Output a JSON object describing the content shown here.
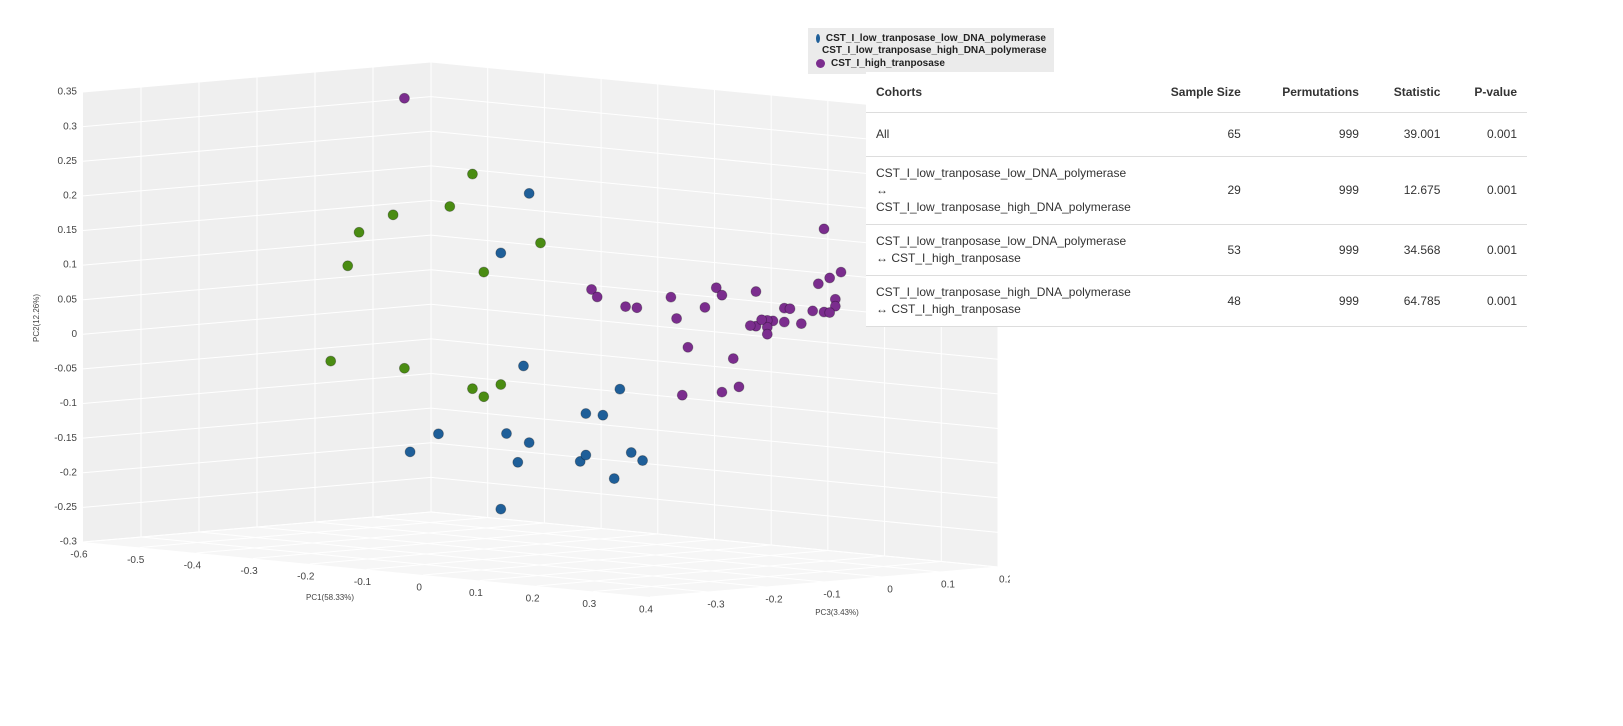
{
  "chart_data": {
    "type": "scatter3d",
    "xlabel": "PC1(58.33%)",
    "ylabel": "PC2(12.26%)",
    "zlabel": "PC3(3.43%)",
    "xlim": [
      -0.6,
      0.4
    ],
    "ylim": [
      -0.3,
      0.35
    ],
    "zlim": [
      -0.4,
      0.2
    ],
    "xticks": [
      -0.6,
      -0.5,
      -0.4,
      -0.3,
      -0.2,
      -0.1,
      0,
      0.1,
      0.2,
      0.3,
      0.4
    ],
    "yticks": [
      -0.3,
      -0.25,
      -0.2,
      -0.15,
      -0.1,
      -0.05,
      0,
      0.05,
      0.1,
      0.15,
      0.2,
      0.25,
      0.3,
      0.35
    ],
    "zticks": [
      -0.3,
      -0.2,
      -0.1,
      0,
      0.1,
      0.2
    ],
    "grid": true,
    "series": [
      {
        "name": "CST_I_low_tranposase_low_DNA_polymerase",
        "color": "#1f5f99",
        "x": [
          -0.12,
          -0.17,
          -0.13,
          0.04,
          -0.02,
          0.01,
          -0.28,
          -0.16,
          -0.12,
          -0.33,
          -0.14,
          -0.03,
          -0.02,
          0.06,
          0.08,
          0.03,
          -0.17
        ],
        "y": [
          0.22,
          0.13,
          -0.03,
          -0.05,
          -0.09,
          -0.09,
          -0.14,
          -0.13,
          -0.14,
          -0.17,
          -0.17,
          -0.16,
          -0.15,
          -0.14,
          -0.15,
          -0.18,
          -0.24
        ],
        "z": [
          -0.1,
          -0.1,
          -0.1,
          -0.1,
          -0.1,
          -0.1,
          -0.1,
          -0.1,
          -0.1,
          -0.1,
          -0.1,
          -0.1,
          -0.1,
          -0.1,
          -0.1,
          -0.1,
          -0.1
        ]
      },
      {
        "name": "CST_I_low_tranposase_high_DNA_polymerase",
        "color": "#4a8c12",
        "x": [
          -0.22,
          -0.36,
          -0.26,
          -0.42,
          -0.1,
          -0.44,
          -0.2,
          -0.47,
          -0.34,
          -0.22,
          -0.17,
          -0.2
        ],
        "y": [
          0.24,
          0.17,
          0.19,
          0.14,
          0.15,
          0.09,
          0.1,
          -0.05,
          -0.05,
          -0.07,
          -0.06,
          -0.08
        ],
        "z": [
          -0.1,
          -0.1,
          -0.1,
          -0.1,
          -0.1,
          -0.1,
          -0.1,
          -0.1,
          -0.1,
          -0.1,
          -0.1,
          -0.1
        ]
      },
      {
        "name": "CST_I_high_tranposase",
        "color": "#7b2d8e",
        "x": [
          -0.34,
          0.4,
          0.43,
          0.41,
          0.39,
          -0.01,
          0,
          0.13,
          0.21,
          0.22,
          0.28,
          0.05,
          0.07,
          0.19,
          0.14,
          0.33,
          0.42,
          0.42,
          0.34,
          0.38,
          0.4,
          0.41,
          0.31,
          0.3,
          0.28,
          0.27,
          0.3,
          0.33,
          0.36,
          0.3,
          0.16,
          0.24,
          0.25,
          0.22,
          0.15,
          0.29
        ],
        "y": [
          0.34,
          0.21,
          0.15,
          0.14,
          0.13,
          0.09,
          0.08,
          0.09,
          0.11,
          0.1,
          0.11,
          0.07,
          0.07,
          0.08,
          0.06,
          0.09,
          0.11,
          0.1,
          0.09,
          0.09,
          0.09,
          0.09,
          0.07,
          0.07,
          0.06,
          0.06,
          0.06,
          0.07,
          0.07,
          0.05,
          0.02,
          0.01,
          -0.03,
          -0.04,
          -0.05,
          0.07
        ],
        "z": [
          -0.1,
          -0.1,
          -0.1,
          -0.1,
          -0.1,
          -0.1,
          -0.1,
          -0.1,
          -0.1,
          -0.1,
          -0.1,
          -0.1,
          -0.1,
          -0.1,
          -0.1,
          -0.1,
          -0.1,
          -0.1,
          -0.1,
          -0.1,
          -0.1,
          -0.1,
          -0.1,
          -0.1,
          -0.1,
          -0.1,
          -0.1,
          -0.1,
          -0.1,
          -0.1,
          -0.1,
          -0.1,
          -0.1,
          -0.1,
          -0.1,
          -0.1
        ]
      }
    ]
  },
  "table": {
    "columns": [
      "Cohorts",
      "Sample Size",
      "Permutations",
      "Statistic",
      "P-value"
    ],
    "rows": [
      [
        "All",
        65,
        999,
        39.001,
        0.001
      ],
      [
        "CST_I_low_tranposase_low_DNA_polymerase ↔ CST_I_low_tranposase_high_DNA_polymerase",
        29,
        999,
        12.675,
        0.001
      ],
      [
        "CST_I_low_tranposase_low_DNA_polymerase ↔ CST_I_high_tranposase",
        53,
        999,
        34.568,
        0.001
      ],
      [
        "CST_I_low_tranposase_high_DNA_polymerase ↔ CST_I_high_tranposase",
        48,
        999,
        64.785,
        0.001
      ]
    ]
  }
}
